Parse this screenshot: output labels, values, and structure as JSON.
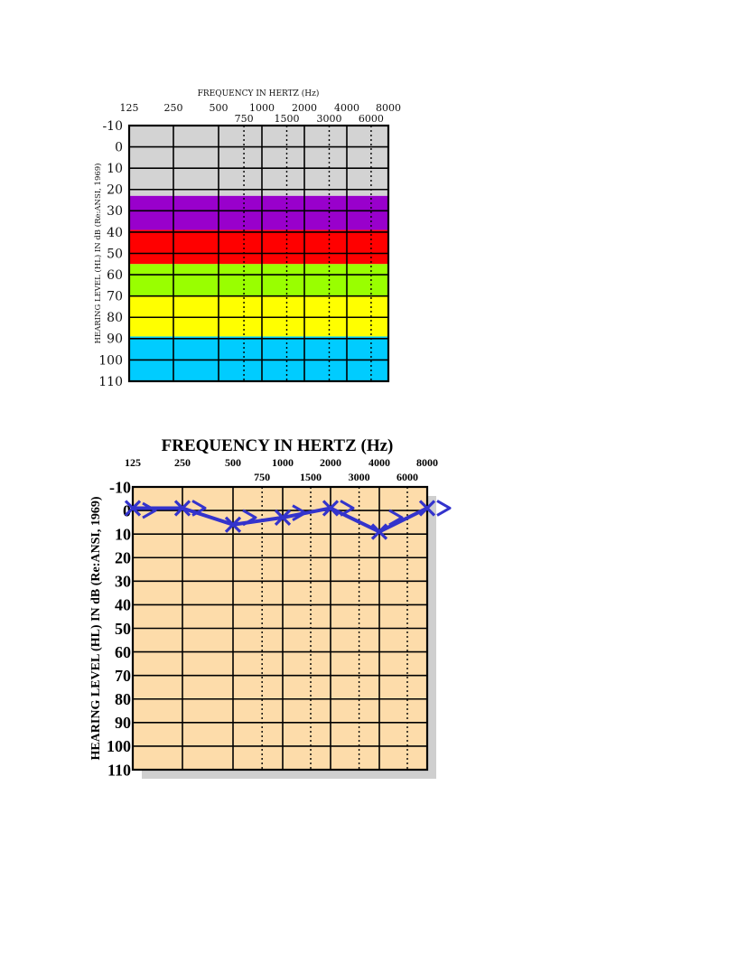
{
  "chart_data": [
    {
      "type": "heatmap",
      "title": "FREQUENCY IN HERTZ (Hz)",
      "ylabel": "HEARING LEVEL (HL) IN dB (Re:ANSI, 1969)",
      "x_major": [
        "125",
        "250",
        "500",
        "1000",
        "2000",
        "4000",
        "8000"
      ],
      "x_minor": [
        "750",
        "1500",
        "3000",
        "6000"
      ],
      "y_ticks": [
        "-10",
        "0",
        "10",
        "20",
        "30",
        "40",
        "50",
        "60",
        "70",
        "80",
        "90",
        "100",
        "110"
      ],
      "ylim": [
        -10,
        110
      ],
      "bands": [
        {
          "from": -10,
          "to": 23,
          "color": "#d3d3d3"
        },
        {
          "from": 23,
          "to": 39,
          "color": "#9900cc"
        },
        {
          "from": 39,
          "to": 55,
          "color": "#ff0000"
        },
        {
          "from": 55,
          "to": 70,
          "color": "#99ff00"
        },
        {
          "from": 70,
          "to": 89,
          "color": "#ffff00"
        },
        {
          "from": 89,
          "to": 110,
          "color": "#00ccff"
        }
      ]
    },
    {
      "type": "line",
      "title": "FREQUENCY IN HERTZ (Hz)",
      "ylabel": "HEARING LEVEL (HL) IN dB (Re:ANSI, 1969)",
      "x_major": [
        "125",
        "250",
        "500",
        "1000",
        "2000",
        "4000",
        "8000"
      ],
      "x_minor": [
        "750",
        "1500",
        "3000",
        "6000"
      ],
      "y_ticks": [
        "-10",
        "0",
        "10",
        "20",
        "30",
        "40",
        "50",
        "60",
        "70",
        "80",
        "90",
        "100",
        "110"
      ],
      "ylim": [
        -10,
        110
      ],
      "background": "#fddcaa",
      "marker_color": "#3333cc",
      "series": [
        {
          "marker": "X",
          "x": [
            125,
            250,
            500,
            1000,
            2000,
            4000,
            8000
          ],
          "y": [
            -1,
            -1,
            6,
            3,
            -1,
            9,
            -1
          ]
        },
        {
          "marker": ">",
          "x": [
            125,
            250,
            500,
            1000,
            2000,
            4000,
            8000
          ],
          "y": [
            0,
            -1,
            3,
            1,
            -1,
            3,
            -1
          ]
        }
      ]
    }
  ]
}
